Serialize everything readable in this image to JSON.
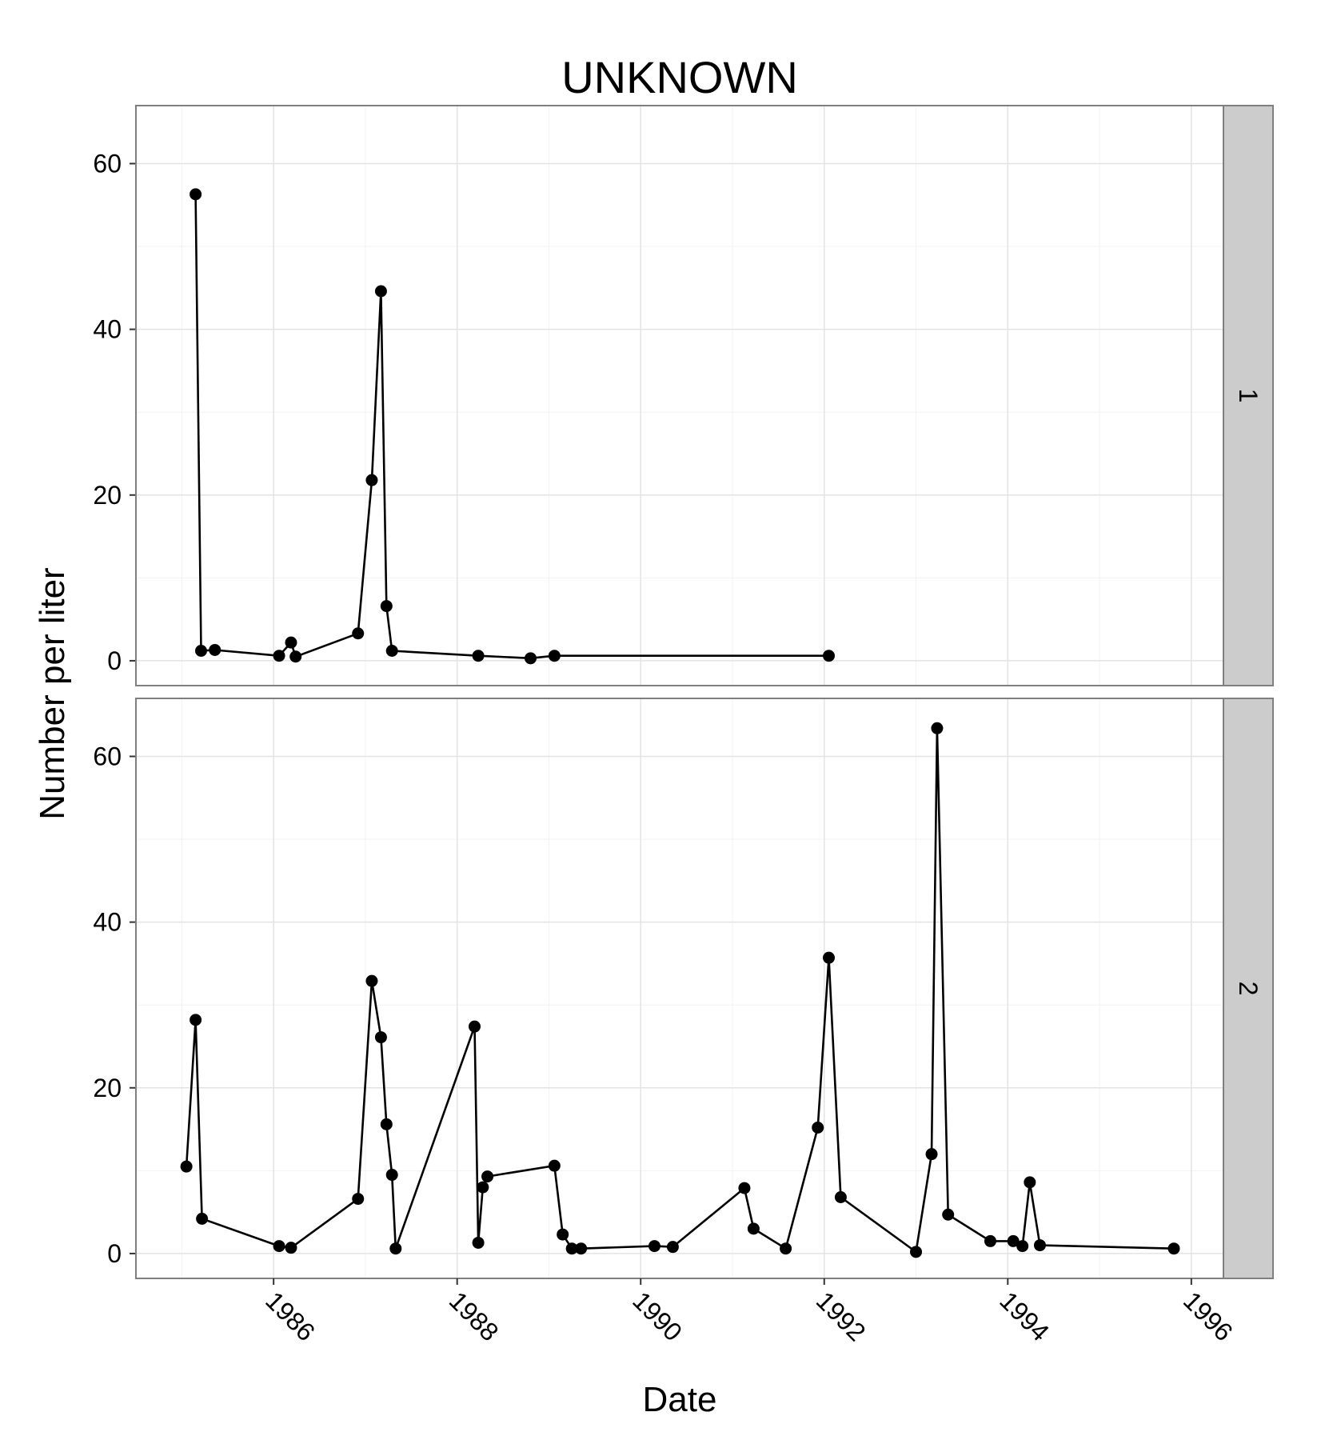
{
  "chart_data": {
    "type": "line",
    "title": "UNKNOWN",
    "xlabel": "Date",
    "ylabel": "Number per liter",
    "xlim": [
      1984.5,
      1996.35
    ],
    "ylim": [
      -3,
      67
    ],
    "x_ticks": [
      1986,
      1988,
      1990,
      1992,
      1994,
      1996
    ],
    "y_ticks": [
      0,
      20,
      40,
      60
    ],
    "grid": true,
    "markers": "filled-circle",
    "line_color": "#000000",
    "panels": [
      {
        "strip_label": "1",
        "points": [
          {
            "x": 1985.15,
            "y": 56.3
          },
          {
            "x": 1985.21,
            "y": 1.2
          },
          {
            "x": 1985.36,
            "y": 1.3
          },
          {
            "x": 1986.06,
            "y": 0.6
          },
          {
            "x": 1986.19,
            "y": 2.2
          },
          {
            "x": 1986.24,
            "y": 0.5
          },
          {
            "x": 1986.92,
            "y": 3.3
          },
          {
            "x": 1987.07,
            "y": 21.8
          },
          {
            "x": 1987.17,
            "y": 44.6
          },
          {
            "x": 1987.23,
            "y": 6.6
          },
          {
            "x": 1987.29,
            "y": 1.2
          },
          {
            "x": 1988.23,
            "y": 0.6
          },
          {
            "x": 1988.8,
            "y": 0.3
          },
          {
            "x": 1989.06,
            "y": 0.6
          },
          {
            "x": 1992.05,
            "y": 0.6
          }
        ]
      },
      {
        "strip_label": "2",
        "points": [
          {
            "x": 1985.05,
            "y": 10.5
          },
          {
            "x": 1985.15,
            "y": 28.2
          },
          {
            "x": 1985.22,
            "y": 4.2
          },
          {
            "x": 1986.06,
            "y": 0.9
          },
          {
            "x": 1986.19,
            "y": 0.7
          },
          {
            "x": 1986.92,
            "y": 6.6
          },
          {
            "x": 1987.07,
            "y": 32.9
          },
          {
            "x": 1987.17,
            "y": 26.1
          },
          {
            "x": 1987.23,
            "y": 15.6
          },
          {
            "x": 1987.29,
            "y": 9.5
          },
          {
            "x": 1987.33,
            "y": 0.6
          },
          {
            "x": 1988.19,
            "y": 27.4
          },
          {
            "x": 1988.23,
            "y": 1.3
          },
          {
            "x": 1988.28,
            "y": 8.0
          },
          {
            "x": 1988.33,
            "y": 9.3
          },
          {
            "x": 1989.06,
            "y": 10.6
          },
          {
            "x": 1989.15,
            "y": 2.3
          },
          {
            "x": 1989.25,
            "y": 0.6
          },
          {
            "x": 1989.35,
            "y": 0.6
          },
          {
            "x": 1990.15,
            "y": 0.9
          },
          {
            "x": 1990.35,
            "y": 0.8
          },
          {
            "x": 1991.13,
            "y": 7.9
          },
          {
            "x": 1991.23,
            "y": 3.0
          },
          {
            "x": 1991.58,
            "y": 0.6
          },
          {
            "x": 1991.93,
            "y": 15.2
          },
          {
            "x": 1992.05,
            "y": 35.7
          },
          {
            "x": 1992.18,
            "y": 6.8
          },
          {
            "x": 1993.0,
            "y": 0.2
          },
          {
            "x": 1993.17,
            "y": 12.0
          },
          {
            "x": 1993.23,
            "y": 63.4
          },
          {
            "x": 1993.35,
            "y": 4.7
          },
          {
            "x": 1993.81,
            "y": 1.5
          },
          {
            "x": 1994.06,
            "y": 1.5
          },
          {
            "x": 1994.16,
            "y": 0.9
          },
          {
            "x": 1994.24,
            "y": 8.6
          },
          {
            "x": 1994.35,
            "y": 1.0
          },
          {
            "x": 1995.81,
            "y": 0.6
          }
        ]
      }
    ]
  }
}
